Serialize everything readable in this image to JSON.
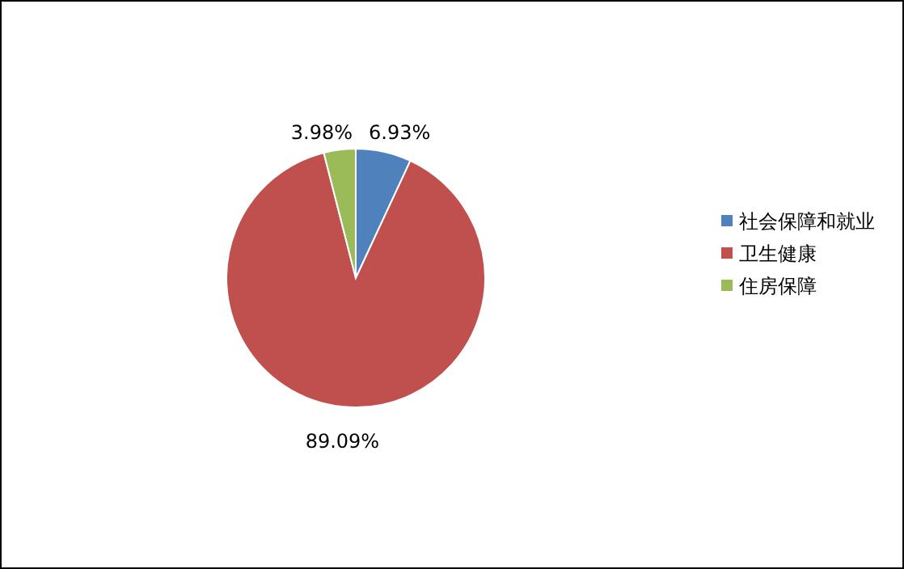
{
  "chart_data": {
    "type": "pie",
    "categories": [
      "社会保障和就业",
      "卫生健康",
      "住房保障"
    ],
    "values": [
      6.93,
      89.09,
      3.98
    ],
    "colors": [
      "#4f81bd",
      "#c0504d",
      "#9bbb59"
    ],
    "value_labels": [
      "6.93%",
      "89.09%",
      "3.98%"
    ],
    "legend": "right"
  }
}
